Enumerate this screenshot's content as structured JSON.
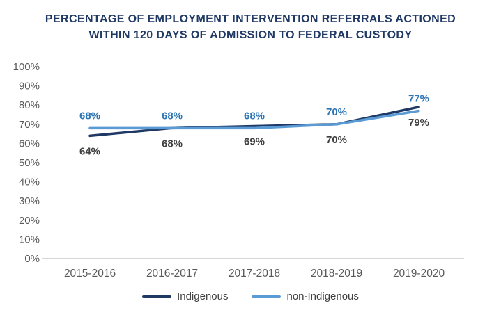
{
  "chart_data": {
    "type": "line",
    "title": "PERCENTAGE OF EMPLOYMENT INTERVENTION REFERRALS ACTIONED WITHIN 120 DAYS OF ADMISSION TO FEDERAL CUSTODY",
    "title_lines": [
      "PERCENTAGE OF EMPLOYMENT INTERVENTION REFERRALS ACTIONED",
      "WITHIN 120 DAYS OF ADMISSION TO FEDERAL CUSTODY"
    ],
    "categories": [
      "2015-2016",
      "2016-2017",
      "2017-2018",
      "2018-2019",
      "2019-2020"
    ],
    "series": [
      {
        "name": "Indigenous",
        "values": [
          64,
          68,
          69,
          70,
          79
        ],
        "data_labels": [
          "64%",
          "68%",
          "69%",
          "70%",
          "79%"
        ],
        "color": "#1F3864",
        "label_color": "#404040",
        "label_position": "below"
      },
      {
        "name": "non-Indigenous",
        "values": [
          68,
          68,
          68,
          70,
          77
        ],
        "data_labels": [
          "68%",
          "68%",
          "68%",
          "70%",
          "77%"
        ],
        "color": "#5B9BD5",
        "label_color": "#2E75B6",
        "label_position": "above"
      }
    ],
    "xlabel": "",
    "ylabel": "",
    "ylim": [
      0,
      100
    ],
    "ytick_step": 10,
    "ytick_labels": [
      "0%",
      "10%",
      "20%",
      "30%",
      "40%",
      "50%",
      "60%",
      "70%",
      "80%",
      "90%",
      "100%"
    ],
    "grid": false,
    "legend_position": "bottom",
    "colors": {
      "title": "#1F3864",
      "axis_text": "#595959",
      "axis_line": "#BFBFBF",
      "legend_text": "#404040",
      "background": "#FFFFFF"
    }
  }
}
